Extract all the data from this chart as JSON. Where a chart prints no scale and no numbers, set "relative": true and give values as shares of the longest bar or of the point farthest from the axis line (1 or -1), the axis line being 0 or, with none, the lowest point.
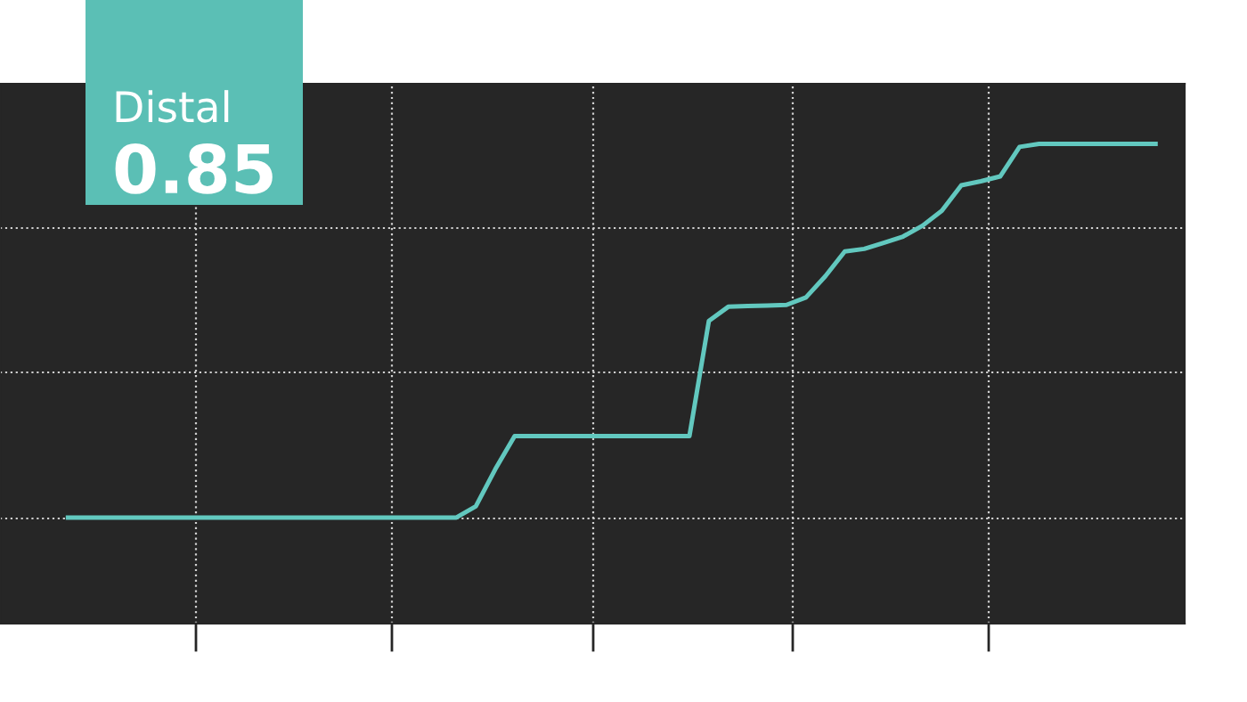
{
  "chart_data": {
    "type": "line",
    "relative": true,
    "annotations": [
      "Distal",
      "0.85"
    ],
    "categories": [
      null,
      null,
      null,
      null,
      null,
      null,
      null,
      null,
      null,
      null,
      null,
      null,
      null,
      null,
      null,
      null,
      null,
      null,
      null,
      null,
      null,
      null,
      null,
      null,
      null,
      null,
      null,
      null,
      null,
      null,
      null,
      null,
      null,
      null,
      null,
      null,
      null,
      null,
      null,
      null,
      null,
      null,
      null,
      null,
      null,
      null,
      null,
      null,
      null,
      null,
      null,
      null,
      null,
      null,
      null,
      null,
      null,
      null,
      null,
      null,
      null
    ],
    "series": [
      {
        "color": "#62c8bf",
        "values": [
          null,
          null,
          null,
          0,
          0,
          0,
          0,
          0,
          0,
          0,
          0,
          0,
          0,
          0,
          0,
          0,
          0,
          0,
          0,
          0,
          0,
          0,
          0,
          0,
          0.03,
          0.129,
          0.218,
          0.218,
          0.218,
          0.218,
          0.218,
          0.218,
          0.218,
          0.218,
          0.218,
          0.218,
          0.526,
          0.564,
          0.566,
          0.567,
          0.569,
          0.589,
          0.646,
          0.712,
          0.719,
          0.735,
          0.752,
          0.781,
          0.821,
          0.889,
          0.9,
          0.913,
          0.992,
          1,
          1,
          1,
          1,
          1,
          1,
          1,
          null
        ]
      }
    ],
    "grid": true,
    "line_style": "solid",
    "marker": "none"
  }
}
